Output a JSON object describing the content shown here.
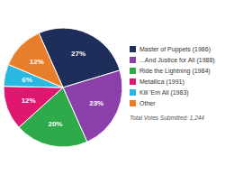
{
  "chart_data": {
    "type": "pie",
    "categories": [
      "Master of Puppets (1986)",
      "...And Justice for All (1988)",
      "Ride the Lightning (1984)",
      "Metallica (1991)",
      "Kill 'Em All (1983)",
      "Other"
    ],
    "values": [
      27,
      23,
      20,
      12,
      6,
      12
    ],
    "value_labels": [
      "27%",
      "23%",
      "20%",
      "12%",
      "6%",
      "12%"
    ],
    "data_labels": true,
    "colors": [
      "#1f2d5a",
      "#8b3fa8",
      "#2eaa4a",
      "#e0176e",
      "#29b8e0",
      "#e87e2a"
    ],
    "legend": "right",
    "annotations": [
      "Total Votes Submitted: 1,244"
    ]
  }
}
